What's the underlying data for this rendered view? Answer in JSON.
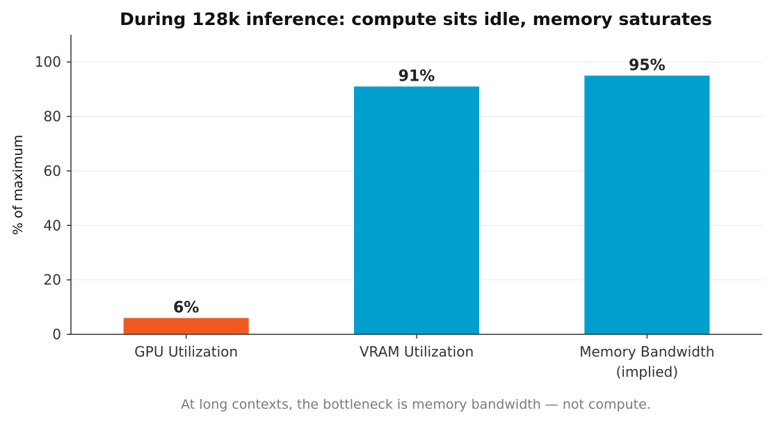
{
  "chart_data": {
    "type": "bar",
    "title": "During 128k inference: compute sits idle, memory saturates",
    "ylabel": "% of maximum",
    "xlabel": "",
    "ylim": [
      0,
      110
    ],
    "yticks": [
      0,
      20,
      40,
      60,
      80,
      100
    ],
    "grid": true,
    "categories": [
      [
        "GPU Utilization"
      ],
      [
        "VRAM Utilization"
      ],
      [
        "Memory Bandwidth",
        "(implied)"
      ]
    ],
    "values": [
      6,
      91,
      95
    ],
    "data_labels": [
      "6%",
      "91%",
      "95%"
    ],
    "colors": [
      "#f05a22",
      "#009fce",
      "#009fce"
    ],
    "caption": "At long contexts, the bottleneck is memory bandwidth — not compute."
  }
}
